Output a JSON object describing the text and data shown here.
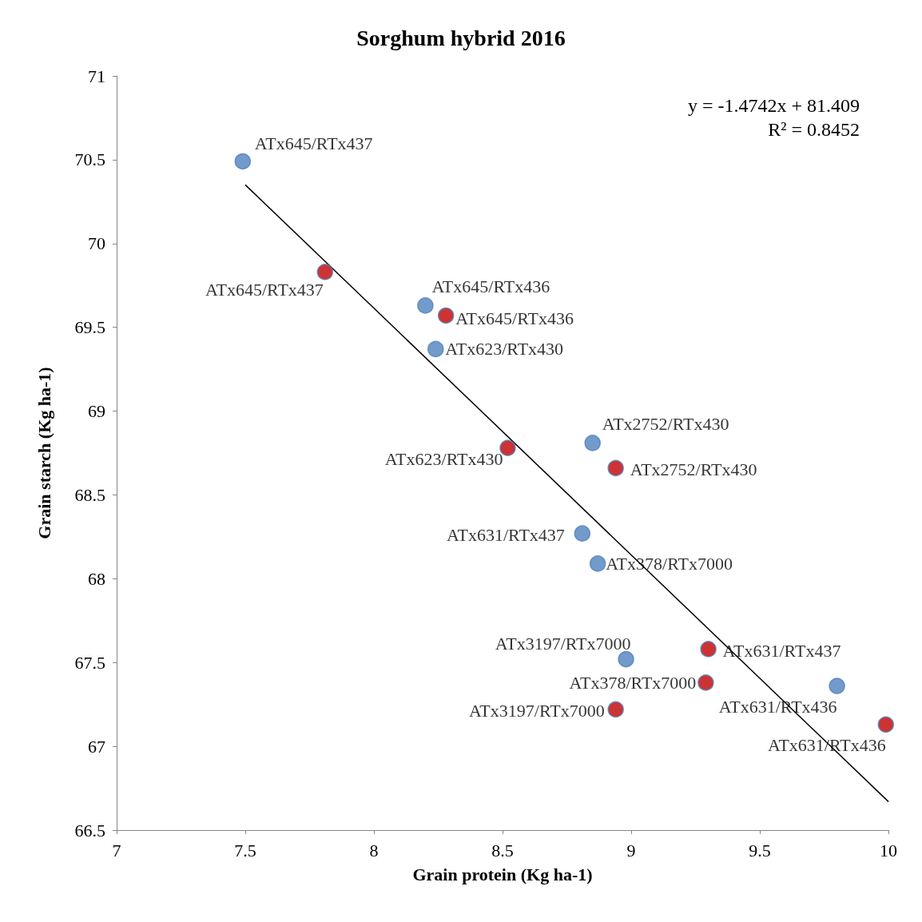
{
  "chart_data": {
    "type": "scatter",
    "title": "Sorghum hybrid 2016",
    "xlabel": "Grain protein (Kg ha-1)",
    "ylabel": "Grain starch (Kg ha-1)",
    "xlim": [
      7,
      10
    ],
    "xticks": [
      7,
      7.5,
      8,
      8.5,
      9,
      9.5,
      10
    ],
    "ylim": [
      66.5,
      71
    ],
    "yticks": [
      66.5,
      67,
      67.5,
      68,
      68.5,
      69,
      69.5,
      70,
      70.5,
      71
    ],
    "grid": false,
    "marker": "circle",
    "annotations": [
      "y = -1.4742x + 81.409",
      "R² = 0.8452"
    ],
    "series": [
      {
        "color": "#4f81bd",
        "x": [
          7.49,
          8.2,
          8.24,
          8.85,
          8.81,
          8.87,
          8.98,
          9.8
        ],
        "values": [
          70.49,
          69.63,
          69.37,
          68.81,
          68.27,
          68.09,
          67.52,
          67.36
        ],
        "value_labels": [
          "ATx645/RTx437",
          "ATx645/RTx436",
          "ATx623/RTx430",
          "ATx2752/RTx430",
          "ATx631/RTx437",
          "ATx378/RTx7000",
          "ATx3197/RTx7000",
          "ATx631/RTx436"
        ]
      },
      {
        "color": "#c00000",
        "x": [
          7.81,
          8.28,
          8.52,
          8.94,
          9.3,
          9.29,
          8.94,
          9.99
        ],
        "values": [
          69.83,
          69.57,
          68.78,
          68.66,
          67.58,
          67.38,
          67.22,
          67.13
        ],
        "value_labels": [
          "ATx645/RTx437",
          "ATx645/RTx436",
          "ATx623/RTx430",
          "ATx2752/RTx430",
          "ATx631/RTx437",
          "ATx378/RTx7000",
          "ATx3197/RTx7000",
          "ATx631/RTx436"
        ]
      },
      {
        "type": "line",
        "color": "#000000",
        "marker": "none",
        "x": [
          7.5,
          10
        ],
        "values": [
          70.35,
          66.67
        ]
      }
    ]
  }
}
